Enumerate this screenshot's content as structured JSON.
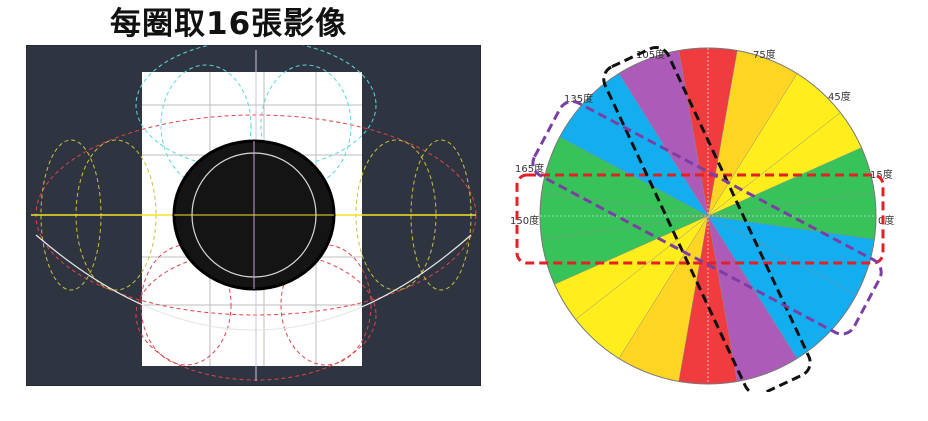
{
  "title": "每圈取16張影像",
  "colors": {
    "dark_bg": "#2f3540",
    "red": "#f03b3f",
    "yellow": "#ffee1c",
    "gold": "#ffd524",
    "green": "#37c25a",
    "blue": "#13aef0",
    "purple": "#ad5bb8",
    "frame_black": "#111111",
    "frame_purple": "#7d3ea4",
    "frame_red": "#e32026"
  },
  "angle_labels": {
    "a0": "0度",
    "a15": "15度",
    "a45": "45度",
    "a75": "75度",
    "a105": "105度",
    "a135": "135度",
    "a150": "150度",
    "a165": "165度"
  }
}
